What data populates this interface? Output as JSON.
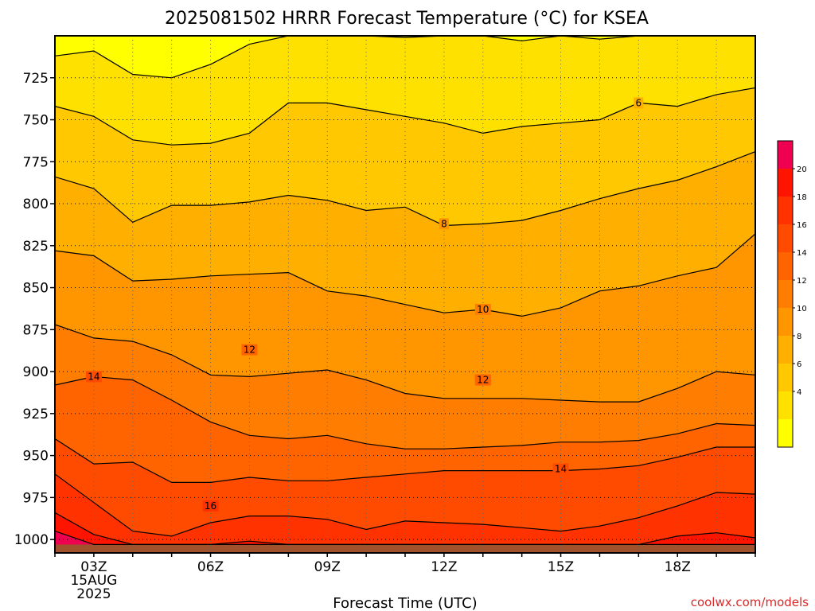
{
  "title": "2025081502 HRRR Forecast Temperature (°C) for KSEA",
  "credit": "coolwx.com/models",
  "colors": {
    "ground": "#a0522d",
    "fills": [
      "#ffff00",
      "#ffe100",
      "#ffc800",
      "#ffaf00",
      "#ff9600",
      "#ff7d00",
      "#ff6400",
      "#ff4b00",
      "#ff3200",
      "#ff1400",
      "#f00050"
    ]
  },
  "chart_data": {
    "type": "contour",
    "title": "2025081502 HRRR Forecast Temperature (°C) for KSEA",
    "xlabel": "Forecast Time (UTC)",
    "ylabel": "",
    "x_hours": [
      2,
      3,
      4,
      5,
      6,
      7,
      8,
      9,
      10,
      11,
      12,
      13,
      14,
      15,
      16,
      17,
      18,
      19,
      20
    ],
    "xlim": [
      2,
      20
    ],
    "ylim": [
      1008,
      700
    ],
    "y_ticks": [
      725,
      750,
      775,
      800,
      825,
      850,
      875,
      900,
      925,
      950,
      975,
      1000
    ],
    "x_ticks": [
      {
        "hour": 3,
        "lines": [
          "03Z",
          "15AUG",
          "2025"
        ]
      },
      {
        "hour": 6,
        "lines": [
          "06Z"
        ]
      },
      {
        "hour": 9,
        "lines": [
          "09Z"
        ]
      },
      {
        "hour": 12,
        "lines": [
          "12Z"
        ]
      },
      {
        "hour": 15,
        "lines": [
          "15Z"
        ]
      },
      {
        "hour": 18,
        "lines": [
          "18Z"
        ]
      }
    ],
    "grid": true,
    "surface_pressure": 1003,
    "levels": [
      {
        "t": 20,
        "p": [
          995,
          1003,
          1003,
          1003,
          1003,
          1003,
          1003,
          1003,
          1003,
          1003,
          1003,
          1003,
          1003,
          1003,
          1003,
          1003,
          1003,
          1003,
          1003
        ]
      },
      {
        "t": 18,
        "p": [
          984,
          997,
          1003,
          1003,
          1003,
          1001,
          1003,
          1003,
          1003,
          1003,
          1003,
          1003,
          1003,
          1003,
          1003,
          1003,
          998,
          996,
          999
        ]
      },
      {
        "t": 16,
        "p": [
          961,
          978,
          995,
          998,
          990,
          986,
          986,
          988,
          994,
          989,
          990,
          991,
          993,
          995,
          992,
          987,
          980,
          972,
          973
        ]
      },
      {
        "t": 14,
        "p": [
          940,
          955,
          954,
          966,
          966,
          963,
          965,
          965,
          963,
          961,
          959,
          959,
          959,
          959,
          958,
          956,
          951,
          945,
          945
        ]
      },
      {
        "t": 12,
        "p": [
          908,
          903,
          905,
          917,
          930,
          938,
          940,
          938,
          943,
          946,
          946,
          945,
          944,
          942,
          942,
          941,
          937,
          931,
          932
        ]
      },
      {
        "t": 10,
        "p": [
          872,
          880,
          882,
          890,
          902,
          903,
          901,
          899,
          905,
          913,
          916,
          916,
          916,
          917,
          918,
          918,
          910,
          900,
          902
        ]
      },
      {
        "t": 8,
        "p": [
          828,
          831,
          846,
          845,
          843,
          842,
          841,
          852,
          855,
          860,
          865,
          863,
          867,
          862,
          852,
          849,
          843,
          838,
          818
        ]
      },
      {
        "t": 6,
        "p": [
          784,
          791,
          811,
          801,
          801,
          799,
          795,
          798,
          804,
          802,
          813,
          812,
          810,
          804,
          797,
          791,
          786,
          778,
          769
        ]
      },
      {
        "t": 4,
        "p": [
          742,
          748,
          762,
          765,
          764,
          758,
          740,
          740,
          744,
          748,
          752,
          758,
          754,
          752,
          750,
          740,
          742,
          735,
          731
        ]
      },
      {
        "t": 2,
        "p": [
          712,
          709,
          723,
          725,
          717,
          705,
          700,
          700,
          700,
          701,
          700,
          700,
          703,
          700,
          702,
          700,
          700,
          700,
          700
        ]
      }
    ],
    "contour_labels": [
      {
        "value": "6",
        "hour": 17,
        "p": 740
      },
      {
        "value": "8",
        "hour": 12,
        "p": 812
      },
      {
        "value": "10",
        "hour": 13,
        "p": 863
      },
      {
        "value": "12",
        "hour": 7,
        "p": 887
      },
      {
        "value": "12",
        "hour": 13,
        "p": 905
      },
      {
        "value": "14",
        "hour": 3,
        "p": 903
      },
      {
        "value": "14",
        "hour": 15,
        "p": 958
      },
      {
        "value": "16",
        "hour": 6,
        "p": 980
      }
    ],
    "colorbar": {
      "ticks": [
        "20",
        "18",
        "16",
        "14",
        "12",
        "10",
        "8",
        "6",
        "4"
      ]
    }
  }
}
